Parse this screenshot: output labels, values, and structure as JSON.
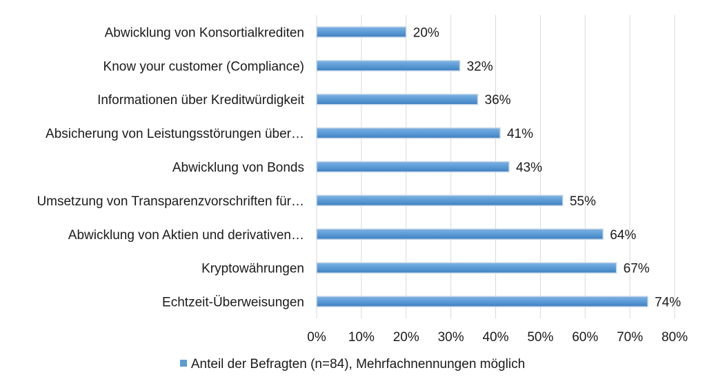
{
  "chart_data": {
    "type": "bar",
    "orientation": "horizontal",
    "categories": [
      "Abwicklung von Konsortialkrediten",
      "Know your customer (Compliance)",
      "Informationen über Kreditwürdigkeit",
      "Absicherung von Leistungsstörungen über…",
      "Abwicklung von Bonds",
      "Umsetzung von Transparenzvorschriften für…",
      "Abwicklung von Aktien und derivativen…",
      "Kryptowährungen",
      "Echtzeit-Überweisungen"
    ],
    "series": [
      {
        "name": "Anteil der Befragten (n=84), Mehrfachnennungen möglich",
        "values": [
          20,
          32,
          36,
          41,
          43,
          55,
          64,
          67,
          74
        ],
        "value_labels": [
          "20%",
          "32%",
          "36%",
          "41%",
          "43%",
          "55%",
          "64%",
          "67%",
          "74%"
        ],
        "color": "#5b9bd5"
      }
    ],
    "xlim": [
      0,
      80
    ],
    "x_ticks": [
      0,
      10,
      20,
      30,
      40,
      50,
      60,
      70,
      80
    ],
    "x_tick_labels": [
      "0%",
      "10%",
      "20%",
      "30%",
      "40%",
      "50%",
      "60%",
      "70%",
      "80%"
    ],
    "grid": true,
    "legend_position": "bottom"
  }
}
